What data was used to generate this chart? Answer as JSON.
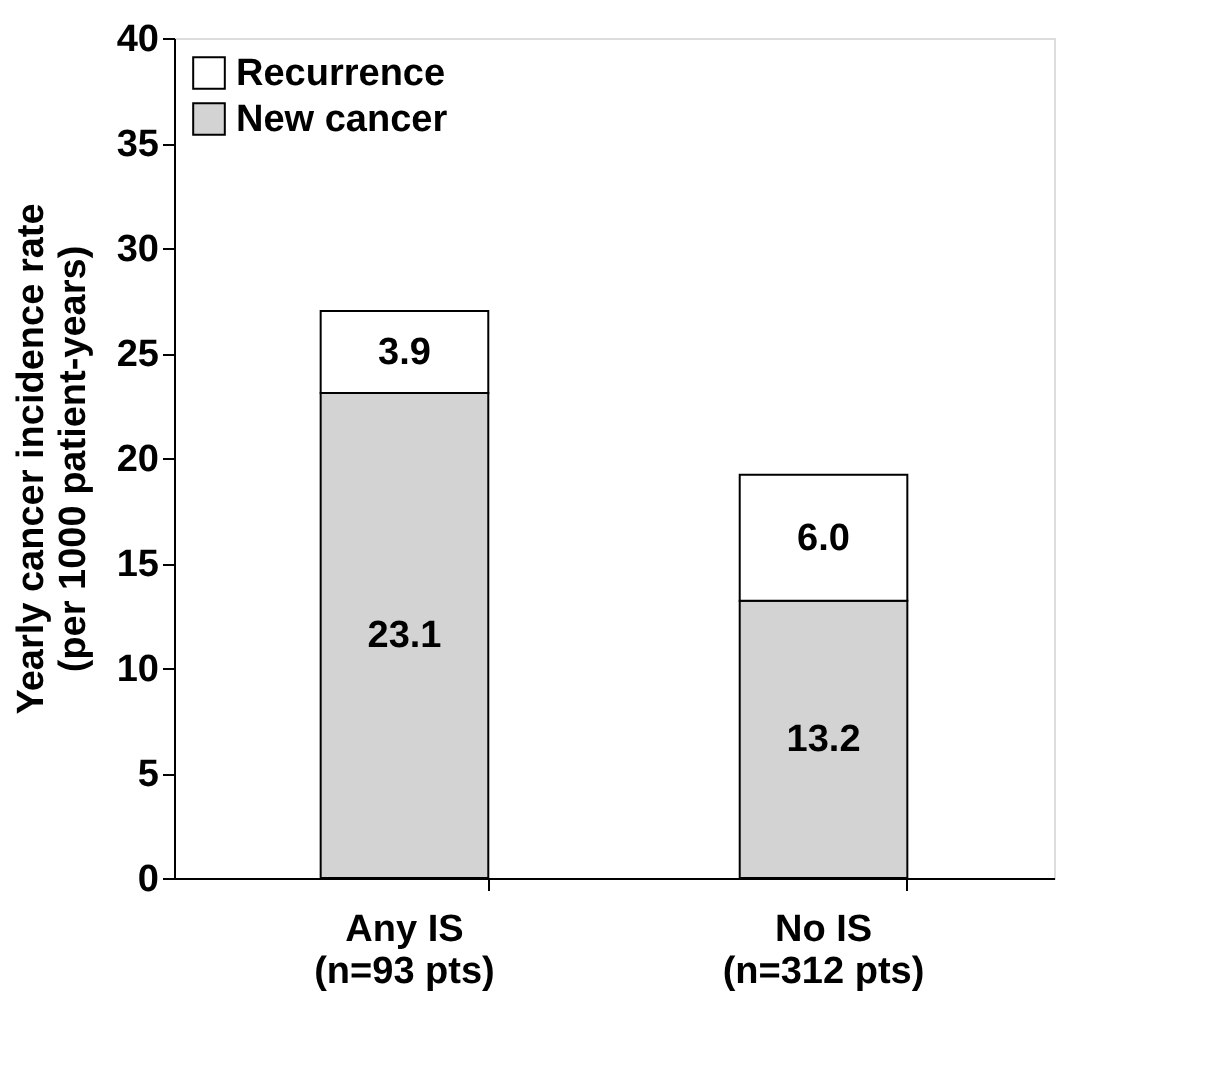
{
  "chart_data": {
    "type": "bar",
    "stacked": true,
    "ylabel": "Yearly cancer incidence rate\n(per 1000 patient-years)",
    "categories": [
      "Any IS\n(n=93 pts)",
      "No IS\n(n=312 pts)"
    ],
    "series": [
      {
        "name": "New cancer",
        "color": "#d3d3d3",
        "values": [
          23.1,
          13.2
        ],
        "value_labels": [
          "23.1",
          "13.2"
        ]
      },
      {
        "name": "Recurrence",
        "color": "#ffffff",
        "values": [
          3.9,
          6.0
        ],
        "value_labels": [
          "3.9",
          "6.0"
        ]
      }
    ],
    "ylim": [
      0,
      40
    ],
    "yticks": [
      0,
      5,
      10,
      15,
      20,
      25,
      30,
      35,
      40
    ],
    "grid": false,
    "legend": "top left"
  }
}
